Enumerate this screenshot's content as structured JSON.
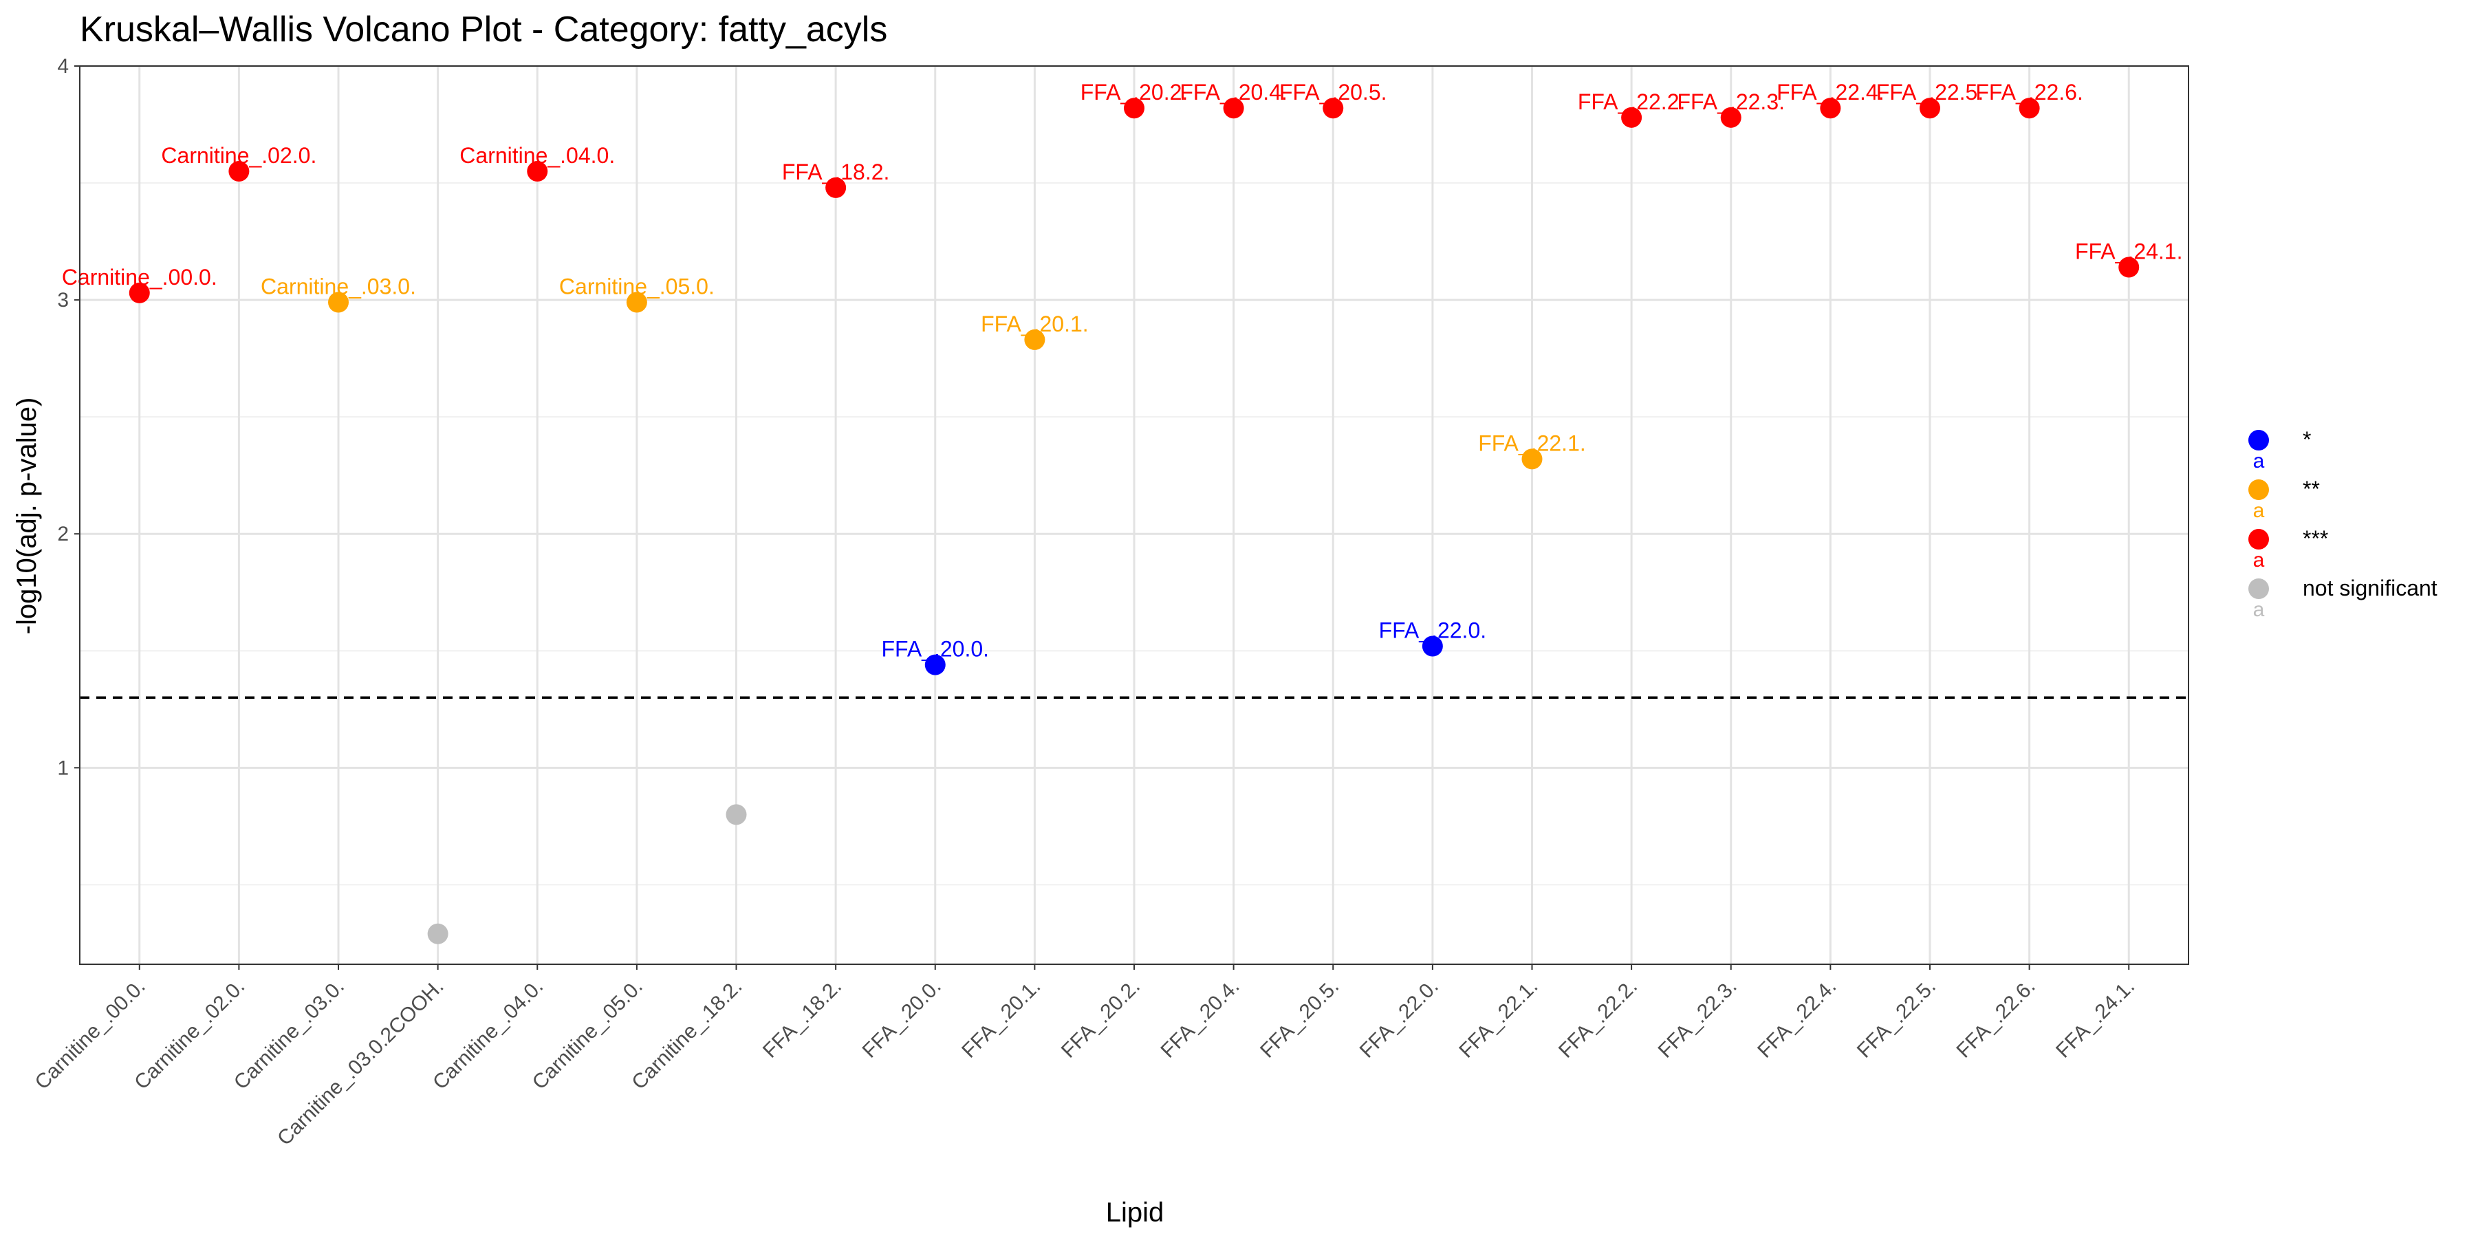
{
  "chart_data": {
    "type": "scatter",
    "title": "Kruskal–Wallis Volcano Plot - Category: fatty_acyls",
    "xlabel": "Lipid",
    "ylabel": "-log10(adj. p-value)",
    "ylim": [
      0.16,
      4.0
    ],
    "yticks": [
      1,
      2,
      3,
      4
    ],
    "threshold": 1.3,
    "grid": true,
    "legend_position": "right",
    "categories": [
      "Carnitine_.00.0.",
      "Carnitine_.02.0.",
      "Carnitine_.03.0.",
      "Carnitine_.03.0.2COOH.",
      "Carnitine_.04.0.",
      "Carnitine_.05.0.",
      "Carnitine_.18.2.",
      "FFA_.18.2.",
      "FFA_.20.0.",
      "FFA_.20.1.",
      "FFA_.20.2.",
      "FFA_.20.4.",
      "FFA_.20.5.",
      "FFA_.22.0.",
      "FFA_.22.1.",
      "FFA_.22.2.",
      "FFA_.22.3.",
      "FFA_.22.4.",
      "FFA_.22.5.",
      "FFA_.22.6.",
      "FFA_.24.1."
    ],
    "points": [
      {
        "x": "Carnitine_.00.0.",
        "y": 3.03,
        "group": "***",
        "label": "Carnitine_.00.0."
      },
      {
        "x": "Carnitine_.02.0.",
        "y": 3.55,
        "group": "***",
        "label": "Carnitine_.02.0."
      },
      {
        "x": "Carnitine_.03.0.",
        "y": 2.99,
        "group": "**",
        "label": "Carnitine_.03.0."
      },
      {
        "x": "Carnitine_.03.0.2COOH.",
        "y": 0.29,
        "group": "not significant",
        "label": ""
      },
      {
        "x": "Carnitine_.04.0.",
        "y": 3.55,
        "group": "***",
        "label": "Carnitine_.04.0."
      },
      {
        "x": "Carnitine_.05.0.",
        "y": 2.99,
        "group": "**",
        "label": "Carnitine_.05.0."
      },
      {
        "x": "Carnitine_.18.2.",
        "y": 0.8,
        "group": "not significant",
        "label": ""
      },
      {
        "x": "FFA_.18.2.",
        "y": 3.48,
        "group": "***",
        "label": "FFA_.18.2."
      },
      {
        "x": "FFA_.20.0.",
        "y": 1.44,
        "group": "*",
        "label": "FFA_.20.0."
      },
      {
        "x": "FFA_.20.1.",
        "y": 2.83,
        "group": "**",
        "label": "FFA_.20.1."
      },
      {
        "x": "FFA_.20.2.",
        "y": 3.82,
        "group": "***",
        "label": "FFA_.20.2."
      },
      {
        "x": "FFA_.20.4.",
        "y": 3.82,
        "group": "***",
        "label": "FFA_.20.4."
      },
      {
        "x": "FFA_.20.5.",
        "y": 3.82,
        "group": "***",
        "label": "FFA_.20.5."
      },
      {
        "x": "FFA_.22.0.",
        "y": 1.52,
        "group": "*",
        "label": "FFA_.22.0."
      },
      {
        "x": "FFA_.22.1.",
        "y": 2.32,
        "group": "**",
        "label": "FFA_.22.1."
      },
      {
        "x": "FFA_.22.2.",
        "y": 3.78,
        "group": "***",
        "label": "FFA_.22.2."
      },
      {
        "x": "FFA_.22.3.",
        "y": 3.78,
        "group": "***",
        "label": "FFA_.22.3."
      },
      {
        "x": "FFA_.22.4.",
        "y": 3.82,
        "group": "***",
        "label": "FFA_.22.4."
      },
      {
        "x": "FFA_.22.5.",
        "y": 3.82,
        "group": "***",
        "label": "FFA_.22.5."
      },
      {
        "x": "FFA_.22.6.",
        "y": 3.82,
        "group": "***",
        "label": "FFA_.22.6."
      },
      {
        "x": "FFA_.24.1.",
        "y": 3.14,
        "group": "***",
        "label": "FFA_.24.1."
      }
    ],
    "legend": [
      {
        "label": "*",
        "color": "#0000ff"
      },
      {
        "label": "**",
        "color": "#ffa500"
      },
      {
        "label": "***",
        "color": "#ff0000"
      },
      {
        "label": "not significant",
        "color": "#bebebe"
      }
    ]
  }
}
